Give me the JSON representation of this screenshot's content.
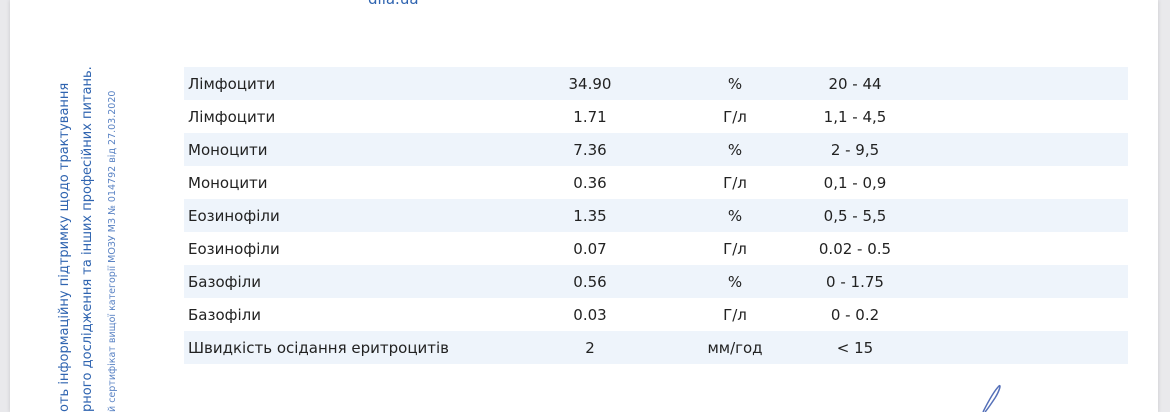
{
  "header": {
    "logo": "dila.ua"
  },
  "side_note": {
    "lines": [
      "оть інформаційну підтримку щодо трактування",
      "рного дослідження та інших професійних питань.",
      "й сертифікат вищої категорії МОЗУ МЗ № 014792 від 27.03.2020"
    ]
  },
  "table": {
    "rows": [
      [
        "Лімфоцити",
        "34.90",
        "%",
        "20 - 44"
      ],
      [
        "Лімфоцити",
        "1.71",
        "Г/л",
        "1,1 - 4,5"
      ],
      [
        "Моноцити",
        "7.36",
        "%",
        "2 - 9,5"
      ],
      [
        "Моноцити",
        "0.36",
        "Г/л",
        "0,1 - 0,9"
      ],
      [
        "Еозинофіли",
        "1.35",
        "%",
        "0,5 - 5,5"
      ],
      [
        "Еозинофіли",
        "0.07",
        "Г/л",
        "0.02 - 0.5"
      ],
      [
        "Базофіли",
        "0.56",
        "%",
        "0 - 1.75"
      ],
      [
        "Базофіли",
        "0.03",
        "Г/л",
        "0 - 0.2"
      ],
      [
        "Швидкість осідання еритроцитів",
        "2",
        "мм/год",
        "< 15"
      ]
    ]
  }
}
